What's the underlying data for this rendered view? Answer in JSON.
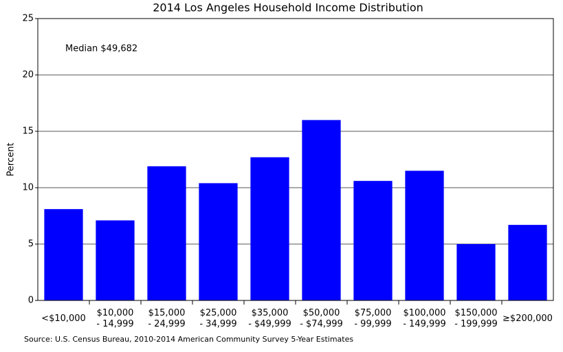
{
  "chart_data": {
    "type": "bar",
    "title": "2014 Los Angeles Household Income Distribution",
    "y_label": "Percent",
    "annotation": "Median $49,682",
    "source": "Source: U.S. Census Bureau, 2010-2014 American Community Survey 5-Year Estimates",
    "categories": [
      "<$10,000",
      "$10,000\n- 14,999",
      "$15,000\n- 24,999",
      "$25,000\n- 34,999",
      "$35,000\n- $49,999",
      "$50,000\n- $74,999",
      "$75,000\n- 99,999",
      "$100,000\n- 149,999",
      "$150,000\n- 199,999",
      "≥$200,000"
    ],
    "values": [
      8.1,
      7.1,
      11.9,
      10.4,
      12.7,
      16.0,
      10.6,
      11.5,
      5.0,
      6.7
    ],
    "color": "#0000ff",
    "ylim": [
      0,
      25
    ],
    "yticks": [
      0,
      5,
      10,
      15,
      20,
      25
    ],
    "grid": true
  }
}
